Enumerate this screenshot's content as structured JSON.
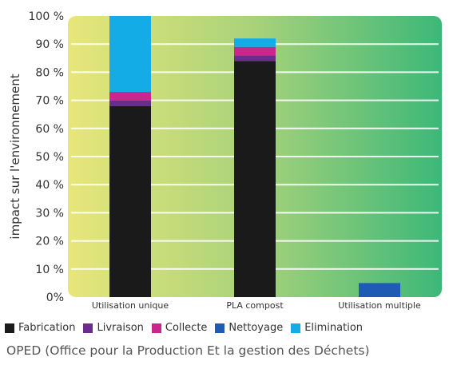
{
  "chart_data": {
    "type": "bar",
    "stacked": true,
    "categories": [
      "Utilisation unique",
      "PLA compost",
      "Utilisation multiple"
    ],
    "series": [
      {
        "name": "Fabrication",
        "color": "#1a1a1a",
        "values": [
          68,
          84,
          0
        ]
      },
      {
        "name": "Livraison",
        "color": "#6a2c8e",
        "values": [
          2,
          2,
          0
        ]
      },
      {
        "name": "Collecte",
        "color": "#c8288c",
        "values": [
          3,
          3,
          0
        ]
      },
      {
        "name": "Nettoyage",
        "color": "#1f5bb4",
        "values": [
          0,
          0,
          5
        ]
      },
      {
        "name": "Elimination",
        "color": "#13ace6",
        "values": [
          27,
          3,
          0
        ]
      }
    ],
    "ylabel": "impact sur l'environnement",
    "ylim": [
      0,
      100
    ],
    "yticks": [
      "0%",
      "10 %",
      "20 %",
      "30 %",
      "40 %",
      "50 %",
      "60 %",
      "70 %",
      "80 %",
      "90 %",
      "100 %"
    ],
    "grid": true,
    "legend_position": "bottom",
    "background_gradient": [
      "#e8e67a",
      "#a8d27a",
      "#3cb878"
    ]
  },
  "source": "OPED (Office pour la Production Et la gestion des Déchets)"
}
